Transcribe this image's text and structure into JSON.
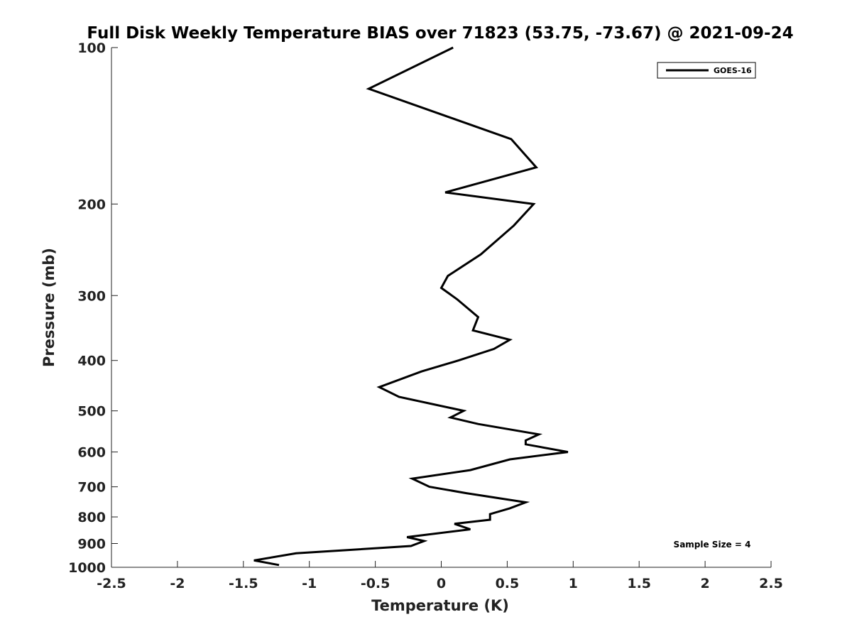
{
  "chart_data": {
    "type": "line",
    "title": "Full Disk Weekly Temperature BIAS over 71823 (53.75, -73.67) @ 2021-09-24",
    "xlabel": "Temperature (K)",
    "ylabel": "Pressure (mb)",
    "xlim": [
      -2.5,
      2.5
    ],
    "ylim": [
      100,
      1000
    ],
    "y_scale": "log",
    "y_reversed": true,
    "x_ticks": [
      -2.5,
      -2,
      -1.5,
      -1,
      -0.5,
      0,
      0.5,
      1,
      1.5,
      2,
      2.5
    ],
    "x_tick_labels": [
      "-2.5",
      "-2",
      "-1.5",
      "-1",
      "-0.5",
      "0",
      "0.5",
      "1",
      "1.5",
      "2",
      "2.5"
    ],
    "y_ticks": [
      100,
      200,
      300,
      400,
      500,
      600,
      700,
      800,
      900,
      1000
    ],
    "y_tick_labels": [
      "100",
      "200",
      "300",
      "400",
      "500",
      "600",
      "700",
      "800",
      "900",
      "1000"
    ],
    "grid": false,
    "legend_position": "top-right",
    "series": [
      {
        "name": "GOES-16",
        "color": "#000000",
        "points": [
          {
            "x": 0.09,
            "y": 100
          },
          {
            "x": -0.55,
            "y": 120
          },
          {
            "x": 0.53,
            "y": 150
          },
          {
            "x": 0.72,
            "y": 170
          },
          {
            "x": 0.03,
            "y": 190
          },
          {
            "x": 0.7,
            "y": 200
          },
          {
            "x": 0.55,
            "y": 220
          },
          {
            "x": 0.3,
            "y": 250
          },
          {
            "x": 0.05,
            "y": 275
          },
          {
            "x": 0.0,
            "y": 290
          },
          {
            "x": 0.12,
            "y": 305
          },
          {
            "x": 0.28,
            "y": 330
          },
          {
            "x": 0.24,
            "y": 350
          },
          {
            "x": 0.52,
            "y": 365
          },
          {
            "x": 0.4,
            "y": 380
          },
          {
            "x": 0.13,
            "y": 400
          },
          {
            "x": -0.15,
            "y": 420
          },
          {
            "x": -0.47,
            "y": 450
          },
          {
            "x": -0.32,
            "y": 470
          },
          {
            "x": 0.17,
            "y": 500
          },
          {
            "x": 0.07,
            "y": 515
          },
          {
            "x": 0.28,
            "y": 530
          },
          {
            "x": 0.74,
            "y": 555
          },
          {
            "x": 0.64,
            "y": 570
          },
          {
            "x": 0.64,
            "y": 580
          },
          {
            "x": 0.96,
            "y": 600
          },
          {
            "x": 0.52,
            "y": 620
          },
          {
            "x": 0.22,
            "y": 650
          },
          {
            "x": -0.22,
            "y": 675
          },
          {
            "x": -0.09,
            "y": 700
          },
          {
            "x": 0.19,
            "y": 720
          },
          {
            "x": 0.64,
            "y": 750
          },
          {
            "x": 0.52,
            "y": 770
          },
          {
            "x": 0.37,
            "y": 790
          },
          {
            "x": 0.37,
            "y": 810
          },
          {
            "x": 0.1,
            "y": 825
          },
          {
            "x": 0.22,
            "y": 845
          },
          {
            "x": -0.26,
            "y": 875
          },
          {
            "x": -0.13,
            "y": 890
          },
          {
            "x": -0.23,
            "y": 910
          },
          {
            "x": -1.1,
            "y": 940
          },
          {
            "x": -1.42,
            "y": 970
          },
          {
            "x": -1.23,
            "y": 990
          }
        ]
      }
    ],
    "annotations": [
      {
        "text": "Sample Size = 4",
        "x": 2.05,
        "y": 900
      }
    ]
  }
}
